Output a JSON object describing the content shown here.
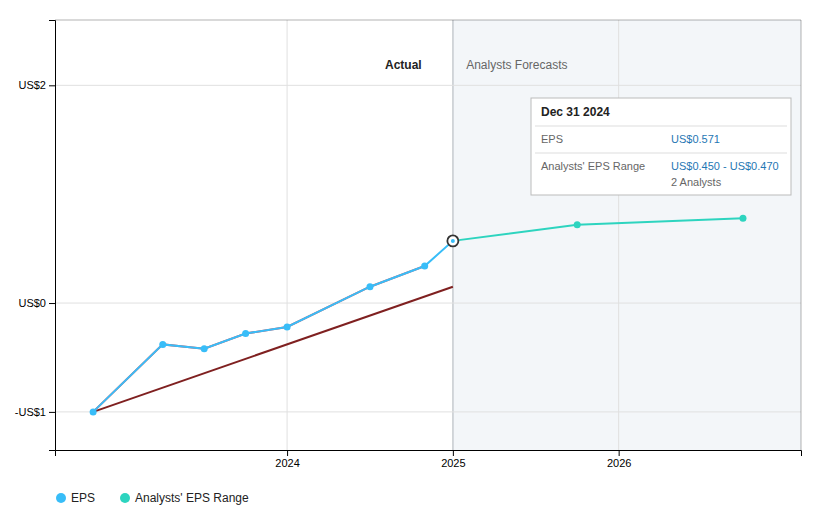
{
  "chart_data": {
    "type": "line",
    "xlim": [
      2022.6,
      2027.1
    ],
    "ylim": [
      -1.35,
      2.6
    ],
    "xticks": [
      2024.0,
      2025.0,
      2026.0
    ],
    "yticks": [
      {
        "value": -1.0,
        "label": "-US$1"
      },
      {
        "value": 0.0,
        "label": "US$0"
      },
      {
        "value": 2.0,
        "label": "US$2"
      }
    ],
    "grid": true,
    "legend": "bottom",
    "series": [
      {
        "color": "#7f2020",
        "line_style": "solid",
        "x": [
          2022.83,
          2025.0
        ],
        "values": [
          -1.0,
          0.15
        ]
      },
      {
        "color": "#ef4444",
        "line_style": "solid",
        "x": [
          2022.83,
          2023.25,
          2023.5,
          2023.75,
          2024.0,
          2024.5,
          2024.83
        ],
        "values": [
          -1.0,
          -0.38,
          -0.42,
          -0.28,
          -0.22,
          0.15,
          0.34
        ]
      },
      {
        "name": "EPS",
        "color": "#38bdf8",
        "line_style": "solid",
        "marker": "circle",
        "x": [
          2022.83,
          2023.25,
          2023.5,
          2023.75,
          2024.0,
          2024.5,
          2024.83,
          2025.0
        ],
        "values": [
          -1.0,
          -0.38,
          -0.42,
          -0.28,
          -0.22,
          0.15,
          0.34,
          0.571
        ]
      },
      {
        "name": "Analysts' EPS Range",
        "color": "#2dd4bf",
        "line_style": "solid",
        "marker": "circle",
        "x": [
          2025.0,
          2025.75,
          2026.75
        ],
        "values": [
          0.571,
          0.72,
          0.78
        ]
      }
    ],
    "annotations": [
      {
        "text": "Actual",
        "x": 2024.83,
        "y": 2.15
      },
      {
        "text": "Analysts Forecasts",
        "x": 2025.08,
        "y": 2.15
      },
      {
        "title": "Dec 31 2024",
        "rows": [
          {
            "label": "EPS",
            "value": "US$0.571"
          },
          {
            "label": "Analysts' EPS Range",
            "value": "US$0.450 - US$0.470",
            "note": "2 Analysts"
          }
        ]
      }
    ]
  }
}
